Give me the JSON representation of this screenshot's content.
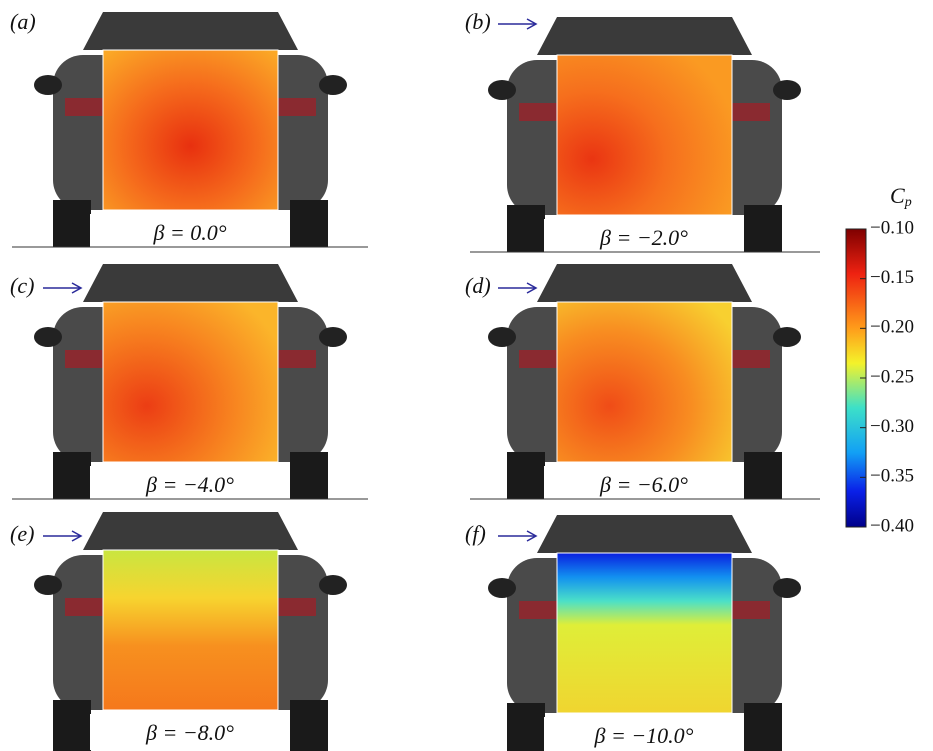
{
  "panels": [
    {
      "label": "(a)",
      "beta": "β = 0.0°"
    },
    {
      "label": "(b)",
      "beta": "β = −2.0°"
    },
    {
      "label": "(c)",
      "beta": "β = −4.0°"
    },
    {
      "label": "(d)",
      "beta": "β = −6.0°"
    },
    {
      "label": "(e)",
      "beta": "β = −8.0°"
    },
    {
      "label": "(f)",
      "beta": "β = −10.0°"
    }
  ],
  "colorbar": {
    "symbol": "C",
    "subscript": "p",
    "ylim": [
      -0.4,
      -0.1
    ],
    "ticks": [
      {
        "value": -0.1,
        "label": "−0.10"
      },
      {
        "value": -0.15,
        "label": "−0.15"
      },
      {
        "value": -0.2,
        "label": "−0.20"
      },
      {
        "value": -0.25,
        "label": "−0.25"
      },
      {
        "value": -0.3,
        "label": "−0.30"
      },
      {
        "value": -0.35,
        "label": "−0.35"
      },
      {
        "value": -0.4,
        "label": "−0.40"
      }
    ]
  }
}
